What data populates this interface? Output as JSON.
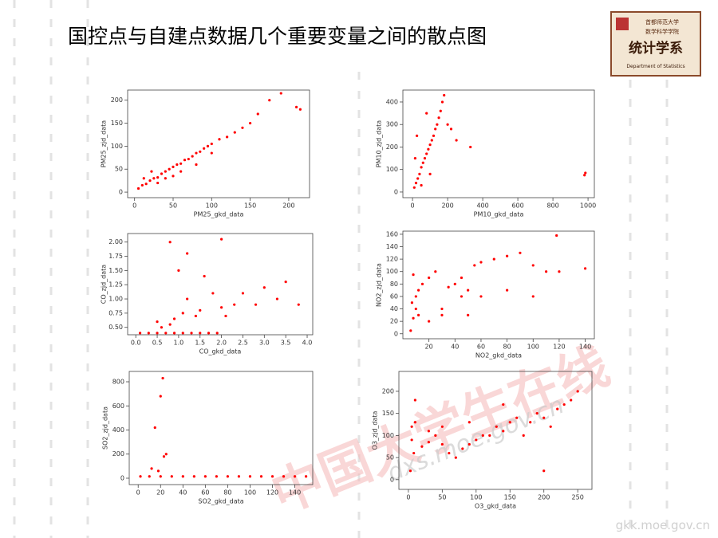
{
  "slide_title": "国控点与自建点数据几个重要变量之间的散点图",
  "logo": {
    "line1": "首都师范大学",
    "line2": "数学科学学院",
    "name": "统计学系",
    "english": "Department of Statistics"
  },
  "watermarks": [
    "中国大学生在线",
    "dxs.moe.gov.cn",
    "gkk.moe.gov.cn"
  ],
  "chart_data": [
    {
      "type": "scatter",
      "xlabel": "PM25_gkd_data",
      "ylabel": "PM25_zjd_data",
      "color": "#ff0000",
      "xlim": [
        -9,
        227
      ],
      "ylim": [
        -12,
        222
      ],
      "xticks": [
        0,
        50,
        100,
        150,
        200
      ],
      "yticks": [
        0,
        50,
        100,
        150,
        200
      ],
      "x": [
        5,
        10,
        15,
        20,
        25,
        30,
        35,
        40,
        45,
        50,
        55,
        60,
        65,
        70,
        75,
        80,
        85,
        90,
        95,
        100,
        110,
        120,
        130,
        140,
        150,
        160,
        175,
        190,
        210,
        215,
        22,
        40,
        60,
        80,
        100,
        12,
        30,
        50
      ],
      "y": [
        8,
        15,
        18,
        25,
        30,
        32,
        40,
        45,
        50,
        55,
        60,
        62,
        70,
        72,
        78,
        85,
        88,
        95,
        100,
        105,
        115,
        120,
        130,
        140,
        150,
        170,
        200,
        215,
        185,
        180,
        45,
        30,
        45,
        60,
        85,
        30,
        20,
        35
      ]
    },
    {
      "type": "scatter",
      "xlabel": "PM10_gkd_data",
      "ylabel": "PM10_zjd_data",
      "color": "#ff0000",
      "xlim": [
        -55,
        1036
      ],
      "ylim": [
        -25,
        453
      ],
      "xticks": [
        0,
        200,
        400,
        600,
        800,
        1000
      ],
      "yticks": [
        0,
        100,
        200,
        300,
        400
      ],
      "x": [
        10,
        20,
        30,
        40,
        50,
        60,
        70,
        80,
        90,
        100,
        110,
        120,
        130,
        140,
        150,
        160,
        170,
        180,
        200,
        220,
        250,
        330,
        980,
        985,
        15,
        50,
        100,
        25,
        80
      ],
      "y": [
        20,
        40,
        60,
        80,
        110,
        130,
        150,
        170,
        190,
        210,
        230,
        250,
        280,
        300,
        330,
        360,
        400,
        430,
        300,
        280,
        230,
        200,
        75,
        85,
        150,
        30,
        80,
        250,
        350
      ]
    },
    {
      "type": "scatter",
      "xlabel": "CO_gkd_data",
      "ylabel": "CO_zjd_data",
      "color": "#ff0000",
      "xlim": [
        -0.19,
        4.13
      ],
      "ylim": [
        0.37,
        2.15
      ],
      "xticks": [
        {
          "value": 0,
          "label": "0.0"
        },
        0.5,
        {
          "value": 1,
          "label": "1.0"
        },
        1.5,
        {
          "value": 2,
          "label": "2.0"
        },
        2.5,
        {
          "value": 3,
          "label": "3.0"
        },
        3.5,
        {
          "value": 4,
          "label": "4.0"
        }
      ],
      "yticks": [
        {
          "value": 0.5,
          "label": "0.50"
        },
        0.75,
        {
          "value": 1,
          "label": "1.00"
        },
        1.25,
        {
          "value": 1.5,
          "label": "1.50"
        },
        1.75,
        {
          "value": 2,
          "label": "2.00"
        }
      ],
      "x": [
        0.1,
        0.3,
        0.5,
        0.7,
        0.9,
        1.1,
        1.3,
        1.5,
        1.7,
        1.9,
        2.1,
        2.3,
        2.5,
        2.8,
        3.0,
        3.3,
        3.5,
        3.8,
        0.8,
        1.0,
        1.2,
        1.6,
        0.5,
        0.9,
        1.4,
        2.0,
        0.6,
        0.8,
        1.1,
        1.5,
        2.0,
        1.2,
        1.8
      ],
      "y": [
        0.4,
        0.4,
        0.4,
        0.4,
        0.4,
        0.4,
        0.4,
        0.4,
        0.4,
        0.4,
        0.7,
        0.9,
        1.1,
        0.9,
        1.2,
        1.0,
        1.3,
        0.9,
        2.0,
        1.5,
        1.8,
        1.4,
        0.6,
        0.65,
        0.7,
        0.85,
        0.5,
        0.55,
        0.75,
        0.8,
        2.05,
        1.0,
        1.1
      ]
    },
    {
      "type": "scatter",
      "xlabel": "NO2_gkd_data",
      "ylabel": "NO2_zjd_data",
      "color": "#ff0000",
      "xlim": [
        0,
        147
      ],
      "ylim": [
        -8,
        165
      ],
      "xticks": [
        20,
        40,
        60,
        80,
        100,
        120,
        140
      ],
      "yticks": [
        0,
        20,
        40,
        60,
        80,
        100,
        120,
        140,
        160
      ],
      "x": [
        6,
        8,
        10,
        12,
        15,
        20,
        25,
        30,
        35,
        40,
        45,
        50,
        55,
        60,
        70,
        80,
        90,
        100,
        110,
        120,
        140,
        8,
        10,
        12,
        30,
        50,
        60,
        80,
        100,
        118,
        7,
        20,
        45
      ],
      "y": [
        5,
        95,
        60,
        30,
        80,
        90,
        100,
        40,
        75,
        80,
        90,
        70,
        110,
        115,
        120,
        125,
        130,
        110,
        100,
        100,
        105,
        25,
        40,
        70,
        30,
        30,
        60,
        70,
        60,
        158,
        50,
        20,
        60
      ]
    },
    {
      "type": "scatter",
      "xlabel": "SO2_gkd_data",
      "ylabel": "SO2_zjd_data",
      "color": "#ff0000",
      "xlim": [
        -8,
        156
      ],
      "ylim": [
        -53,
        886
      ],
      "xticks": [
        0,
        20,
        40,
        60,
        80,
        100,
        120,
        140
      ],
      "yticks": [
        0,
        200,
        400,
        600,
        800
      ],
      "x": [
        2,
        10,
        20,
        30,
        40,
        50,
        60,
        70,
        80,
        90,
        100,
        110,
        120,
        130,
        140,
        150,
        15,
        20,
        22,
        25,
        12,
        18,
        23
      ],
      "y": [
        15,
        15,
        15,
        15,
        15,
        15,
        15,
        15,
        15,
        15,
        15,
        15,
        15,
        15,
        15,
        15,
        420,
        680,
        830,
        200,
        80,
        60,
        180
      ]
    },
    {
      "type": "scatter",
      "xlabel": "O3_gkd_data",
      "ylabel": "O3_zjd_data",
      "color": "#ff0000",
      "xlim": [
        -14,
        271
      ],
      "ylim": [
        -22,
        245
      ],
      "xticks": [
        0,
        50,
        100,
        150,
        200,
        250
      ],
      "yticks": [
        0,
        50,
        100,
        150,
        200
      ],
      "x": [
        3,
        5,
        8,
        10,
        20,
        30,
        40,
        50,
        60,
        70,
        80,
        90,
        100,
        110,
        120,
        130,
        140,
        150,
        160,
        170,
        180,
        190,
        200,
        210,
        220,
        230,
        240,
        250,
        5,
        10,
        30,
        50,
        90,
        140,
        200
      ],
      "y": [
        20,
        90,
        60,
        180,
        75,
        85,
        100,
        80,
        60,
        50,
        70,
        80,
        90,
        100,
        100,
        120,
        110,
        130,
        140,
        100,
        130,
        150,
        140,
        120,
        160,
        170,
        180,
        200,
        120,
        130,
        110,
        120,
        130,
        170,
        20
      ]
    }
  ]
}
